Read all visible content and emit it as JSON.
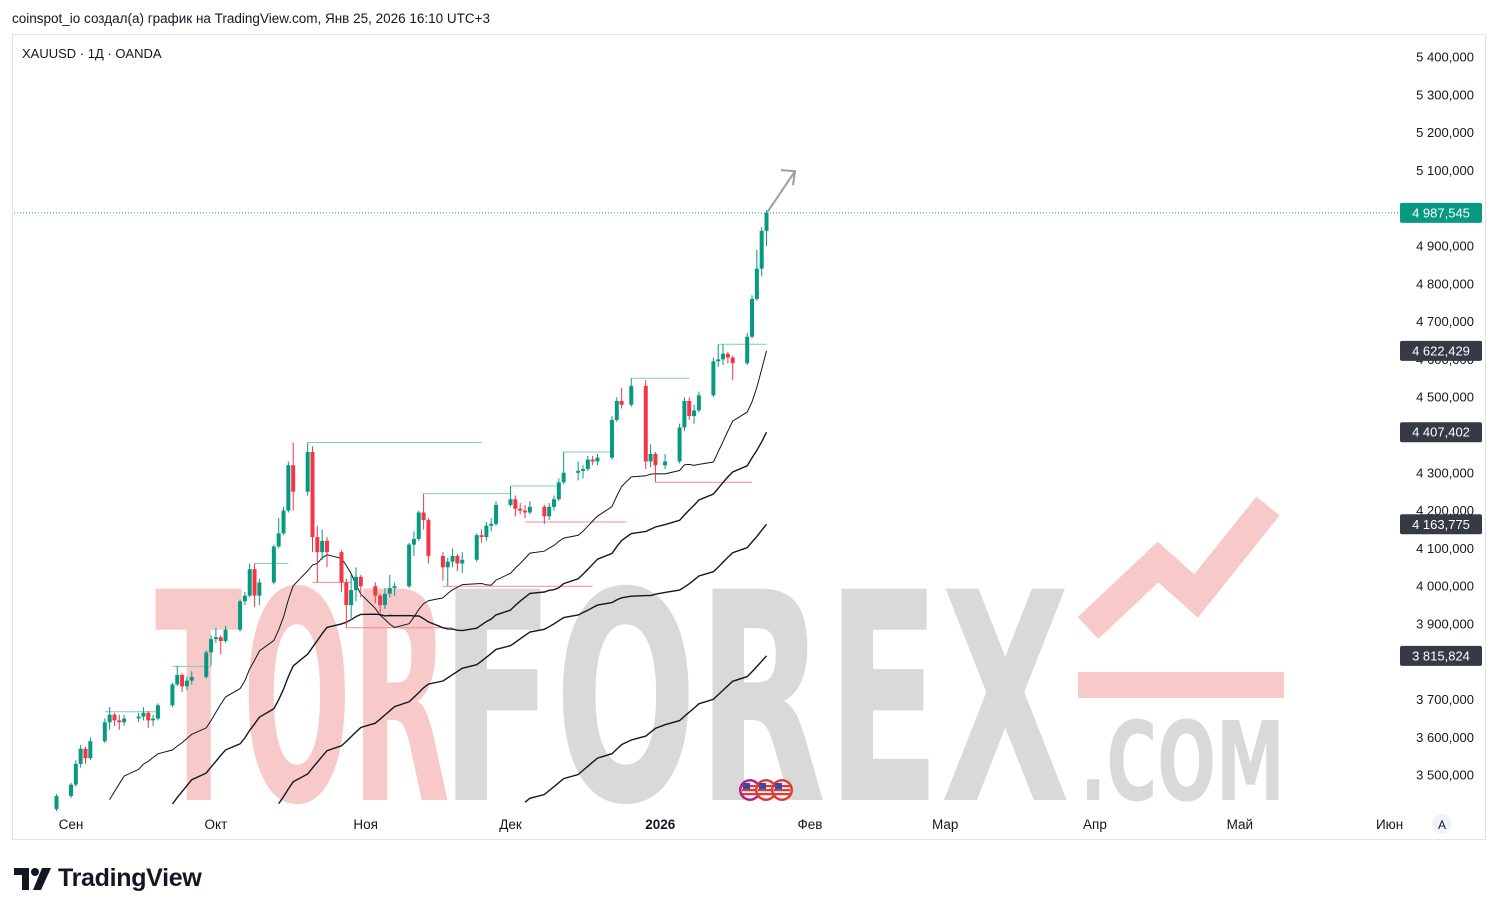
{
  "header": {
    "caption": "coinspot_io создал(а) график на TradingView.com, Янв 25, 2026 16:10 UTC+3"
  },
  "legend": {
    "symbol": "XAUUSD · 1Д · OANDA"
  },
  "footer": {
    "brand": "TradingView"
  },
  "watermark": {
    "word_a": "TOR",
    "word_b": "FOREX",
    "suffix": ".COM"
  },
  "colors": {
    "up": "#089981",
    "down": "#f23645",
    "last_price_tag": "#089981",
    "ma_tag": "#363a45",
    "watermark_red": "#f7c9c9",
    "watermark_grey": "#d9d9d9"
  },
  "chart_data": {
    "type": "candlestick",
    "symbol": "XAUUSD",
    "interval": "1Д",
    "source": "OANDA",
    "ylim": [
      3430000,
      5430000
    ],
    "y_ticks": [
      "5 400,000",
      "5 300,000",
      "5 200,000",
      "5 100,000",
      "5 000,000",
      "4 900,000",
      "4 800,000",
      "4 700,000",
      "4 600,000",
      "4 500,000",
      "4 400,000",
      "4 300,000",
      "4 200,000",
      "4 100,000",
      "4 000,000",
      "3 900,000",
      "3 700,000",
      "3 600,000",
      "3 500,000"
    ],
    "y_tick_values": [
      5400000,
      5300000,
      5200000,
      5100000,
      5000000,
      4900000,
      4800000,
      4700000,
      4600000,
      4500000,
      4400000,
      4300000,
      4200000,
      4100000,
      4000000,
      3900000,
      3700000,
      3600000,
      3500000
    ],
    "x_ticks": [
      "Сен",
      "Окт",
      "Ноя",
      "Дек",
      "2026",
      "Фев",
      "Мар",
      "Апр",
      "Май",
      "Июн"
    ],
    "x_tick_dates": [
      "2025-09-01",
      "2025-10-01",
      "2025-11-01",
      "2025-12-01",
      "2026-01-01",
      "2026-02-01",
      "2026-03-01",
      "2026-04-01",
      "2026-05-01",
      "2026-06-01"
    ],
    "x_range": [
      "2025-08-28",
      "2026-06-23"
    ],
    "last_price": {
      "value": 4987545,
      "label": "4 987,545"
    },
    "moving_averages": [
      {
        "label": "4 622,429",
        "last": 4622429
      },
      {
        "label": "4 407,402",
        "last": 4407402
      },
      {
        "label": "4 163,775",
        "last": 4163775
      },
      {
        "label": "3 815,824",
        "last": 3815824
      }
    ],
    "candles": [
      [
        "2025-08-29",
        3410000,
        3450000,
        3405000,
        3445000
      ],
      [
        "2025-09-01",
        3445000,
        3480000,
        3440000,
        3475000
      ],
      [
        "2025-09-02",
        3475000,
        3540000,
        3470000,
        3530000
      ],
      [
        "2025-09-03",
        3530000,
        3580000,
        3520000,
        3570000
      ],
      [
        "2025-09-04",
        3570000,
        3575000,
        3530000,
        3545000
      ],
      [
        "2025-09-05",
        3545000,
        3600000,
        3540000,
        3590000
      ],
      [
        "2025-09-08",
        3590000,
        3650000,
        3585000,
        3640000
      ],
      [
        "2025-09-09",
        3640000,
        3680000,
        3620000,
        3660000
      ],
      [
        "2025-09-10",
        3660000,
        3665000,
        3630000,
        3645000
      ],
      [
        "2025-09-11",
        3645000,
        3660000,
        3620000,
        3640000
      ],
      [
        "2025-09-12",
        3640000,
        3660000,
        3630000,
        3650000
      ],
      [
        "2025-09-15",
        3650000,
        3665000,
        3640000,
        3655000
      ],
      [
        "2025-09-16",
        3655000,
        3680000,
        3645000,
        3665000
      ],
      [
        "2025-09-17",
        3665000,
        3670000,
        3625000,
        3645000
      ],
      [
        "2025-09-18",
        3645000,
        3660000,
        3630000,
        3650000
      ],
      [
        "2025-09-19",
        3650000,
        3690000,
        3645000,
        3685000
      ],
      [
        "2025-09-22",
        3685000,
        3745000,
        3680000,
        3740000
      ],
      [
        "2025-09-23",
        3740000,
        3790000,
        3735000,
        3765000
      ],
      [
        "2025-09-24",
        3765000,
        3770000,
        3720000,
        3735000
      ],
      [
        "2025-09-25",
        3735000,
        3760000,
        3725000,
        3750000
      ],
      [
        "2025-09-26",
        3750000,
        3775000,
        3740000,
        3760000
      ],
      [
        "2025-09-29",
        3760000,
        3830000,
        3755000,
        3825000
      ],
      [
        "2025-09-30",
        3825000,
        3870000,
        3790000,
        3860000
      ],
      [
        "2025-10-01",
        3860000,
        3890000,
        3850000,
        3865000
      ],
      [
        "2025-10-02",
        3865000,
        3870000,
        3820000,
        3855000
      ],
      [
        "2025-10-03",
        3855000,
        3895000,
        3850000,
        3885000
      ],
      [
        "2025-10-06",
        3885000,
        3965000,
        3880000,
        3960000
      ],
      [
        "2025-10-07",
        3960000,
        3985000,
        3950000,
        3975000
      ],
      [
        "2025-10-08",
        3975000,
        4060000,
        3970000,
        4045000
      ],
      [
        "2025-10-09",
        4045000,
        4060000,
        3945000,
        3975000
      ],
      [
        "2025-10-10",
        3975000,
        4020000,
        3950000,
        4010000
      ],
      [
        "2025-10-13",
        4010000,
        4110000,
        4005000,
        4105000
      ],
      [
        "2025-10-14",
        4105000,
        4180000,
        4100000,
        4140000
      ],
      [
        "2025-10-15",
        4140000,
        4210000,
        4135000,
        4200000
      ],
      [
        "2025-10-16",
        4200000,
        4330000,
        4195000,
        4320000
      ],
      [
        "2025-10-17",
        4320000,
        4380000,
        4200000,
        4250000
      ],
      [
        "2025-10-20",
        4250000,
        4380000,
        4240000,
        4355000
      ],
      [
        "2025-10-21",
        4355000,
        4370000,
        4090000,
        4130000
      ],
      [
        "2025-10-22",
        4130000,
        4160000,
        4010000,
        4090000
      ],
      [
        "2025-10-23",
        4090000,
        4150000,
        4070000,
        4120000
      ],
      [
        "2025-10-24",
        4120000,
        4130000,
        4050000,
        4090000
      ],
      [
        "2025-10-27",
        4090000,
        4095000,
        3985000,
        4010000
      ],
      [
        "2025-10-28",
        4010000,
        4020000,
        3890000,
        3950000
      ],
      [
        "2025-10-29",
        3950000,
        4030000,
        3910000,
        3990000
      ],
      [
        "2025-10-30",
        3990000,
        4050000,
        3960000,
        4025000
      ],
      [
        "2025-10-31",
        4025000,
        4030000,
        3970000,
        4000000
      ],
      [
        "2025-11-03",
        4000000,
        4010000,
        3955000,
        3975000
      ],
      [
        "2025-11-04",
        3975000,
        3980000,
        3930000,
        3950000
      ],
      [
        "2025-11-05",
        3950000,
        3995000,
        3940000,
        3980000
      ],
      [
        "2025-11-06",
        3980000,
        4030000,
        3970000,
        3995000
      ],
      [
        "2025-11-07",
        3995000,
        4010000,
        3975000,
        4000000
      ],
      [
        "2025-11-10",
        4000000,
        4115000,
        3995000,
        4110000
      ],
      [
        "2025-11-11",
        4110000,
        4145000,
        4080000,
        4125000
      ],
      [
        "2025-11-12",
        4125000,
        4200000,
        4120000,
        4195000
      ],
      [
        "2025-11-13",
        4195000,
        4245000,
        4150000,
        4175000
      ],
      [
        "2025-11-14",
        4175000,
        4180000,
        4060000,
        4080000
      ],
      [
        "2025-11-17",
        4080000,
        4090000,
        4015000,
        4050000
      ],
      [
        "2025-11-18",
        4050000,
        4075000,
        4000000,
        4065000
      ],
      [
        "2025-11-19",
        4065000,
        4100000,
        4050000,
        4080000
      ],
      [
        "2025-11-20",
        4080000,
        4085000,
        4040000,
        4060000
      ],
      [
        "2025-11-21",
        4060000,
        4090000,
        4035000,
        4070000
      ],
      [
        "2025-11-24",
        4070000,
        4140000,
        4065000,
        4135000
      ],
      [
        "2025-11-25",
        4135000,
        4150000,
        4115000,
        4130000
      ],
      [
        "2025-11-26",
        4130000,
        4170000,
        4120000,
        4160000
      ],
      [
        "2025-11-27",
        4160000,
        4180000,
        4145000,
        4165000
      ],
      [
        "2025-11-28",
        4165000,
        4225000,
        4160000,
        4215000
      ],
      [
        "2025-12-01",
        4215000,
        4265000,
        4210000,
        4230000
      ],
      [
        "2025-12-02",
        4230000,
        4240000,
        4185000,
        4205000
      ],
      [
        "2025-12-03",
        4205000,
        4220000,
        4190000,
        4200000
      ],
      [
        "2025-12-04",
        4200000,
        4215000,
        4180000,
        4195000
      ],
      [
        "2025-12-05",
        4195000,
        4225000,
        4190000,
        4210000
      ],
      [
        "2025-12-08",
        4210000,
        4215000,
        4165000,
        4185000
      ],
      [
        "2025-12-09",
        4185000,
        4220000,
        4175000,
        4210000
      ],
      [
        "2025-12-10",
        4210000,
        4240000,
        4200000,
        4230000
      ],
      [
        "2025-12-11",
        4230000,
        4285000,
        4225000,
        4275000
      ],
      [
        "2025-12-12",
        4275000,
        4355000,
        4270000,
        4300000
      ],
      [
        "2025-12-15",
        4300000,
        4330000,
        4280000,
        4305000
      ],
      [
        "2025-12-16",
        4305000,
        4320000,
        4285000,
        4310000
      ],
      [
        "2025-12-17",
        4310000,
        4345000,
        4305000,
        4335000
      ],
      [
        "2025-12-18",
        4335000,
        4345000,
        4320000,
        4330000
      ],
      [
        "2025-12-19",
        4330000,
        4350000,
        4320000,
        4340000
      ],
      [
        "2025-12-22",
        4340000,
        4450000,
        4335000,
        4440000
      ],
      [
        "2025-12-23",
        4440000,
        4500000,
        4435000,
        4490000
      ],
      [
        "2025-12-24",
        4490000,
        4525000,
        4470000,
        4480000
      ],
      [
        "2025-12-26",
        4480000,
        4550000,
        4475000,
        4530000
      ],
      [
        "2025-12-29",
        4530000,
        4545000,
        4310000,
        4330000
      ],
      [
        "2025-12-30",
        4330000,
        4375000,
        4315000,
        4350000
      ],
      [
        "2025-12-31",
        4350000,
        4355000,
        4275000,
        4320000
      ],
      [
        "2026-01-02",
        4320000,
        4350000,
        4310000,
        4330000
      ],
      [
        "2026-01-05",
        4330000,
        4430000,
        4325000,
        4420000
      ],
      [
        "2026-01-06",
        4420000,
        4500000,
        4410000,
        4490000
      ],
      [
        "2026-01-07",
        4490000,
        4500000,
        4440000,
        4450000
      ],
      [
        "2026-01-08",
        4450000,
        4480000,
        4430000,
        4465000
      ],
      [
        "2026-01-09",
        4465000,
        4515000,
        4460000,
        4505000
      ],
      [
        "2026-01-12",
        4505000,
        4605000,
        4500000,
        4595000
      ],
      [
        "2026-01-13",
        4595000,
        4640000,
        4580000,
        4600000
      ],
      [
        "2026-01-14",
        4600000,
        4640000,
        4585000,
        4615000
      ],
      [
        "2026-01-15",
        4615000,
        4620000,
        4590000,
        4605000
      ],
      [
        "2026-01-16",
        4605000,
        4610000,
        4545000,
        4590000
      ],
      [
        "2026-01-19",
        4590000,
        4670000,
        4585000,
        4660000
      ],
      [
        "2026-01-20",
        4660000,
        4770000,
        4655000,
        4760000
      ],
      [
        "2026-01-21",
        4760000,
        4890000,
        4755000,
        4840000
      ],
      [
        "2026-01-22",
        4840000,
        4950000,
        4820000,
        4940000
      ],
      [
        "2026-01-23",
        4940000,
        4995000,
        4900000,
        4987545
      ]
    ],
    "horizontal_levels": [
      {
        "from": "2025-09-08",
        "to": "2025-09-19",
        "value": 3668000,
        "kind": "resistance"
      },
      {
        "from": "2025-09-22",
        "to": "2025-09-30",
        "value": 3788000,
        "kind": "resistance"
      },
      {
        "from": "2025-10-09",
        "to": "2025-10-16",
        "value": 4060000,
        "kind": "resistance"
      },
      {
        "from": "2025-10-20",
        "to": "2025-11-25",
        "value": 4380000,
        "kind": "resistance"
      },
      {
        "from": "2025-10-21",
        "to": "2025-10-29",
        "value": 4010000,
        "kind": "support"
      },
      {
        "from": "2025-10-28",
        "to": "2025-11-19",
        "value": 3890000,
        "kind": "support"
      },
      {
        "from": "2025-11-13",
        "to": "2025-12-01",
        "value": 4245000,
        "kind": "resistance"
      },
      {
        "from": "2025-11-17",
        "to": "2025-12-18",
        "value": 4000000,
        "kind": "support"
      },
      {
        "from": "2025-12-01",
        "to": "2025-12-11",
        "value": 4265000,
        "kind": "resistance"
      },
      {
        "from": "2025-12-04",
        "to": "2025-12-25",
        "value": 4170000,
        "kind": "support"
      },
      {
        "from": "2025-12-12",
        "to": "2025-12-22",
        "value": 4355000,
        "kind": "resistance"
      },
      {
        "from": "2025-12-26",
        "to": "2026-01-07",
        "value": 4550000,
        "kind": "resistance"
      },
      {
        "from": "2025-12-31",
        "to": "2026-01-20",
        "value": 4275000,
        "kind": "support"
      },
      {
        "from": "2026-01-13",
        "to": "2026-01-23",
        "value": 4640000,
        "kind": "resistance"
      }
    ],
    "forecast_arrow": {
      "from": [
        "2026-01-23",
        4990000
      ],
      "to": [
        "2026-01-26",
        5090000
      ]
    },
    "grid": false,
    "legend": "top-left"
  }
}
